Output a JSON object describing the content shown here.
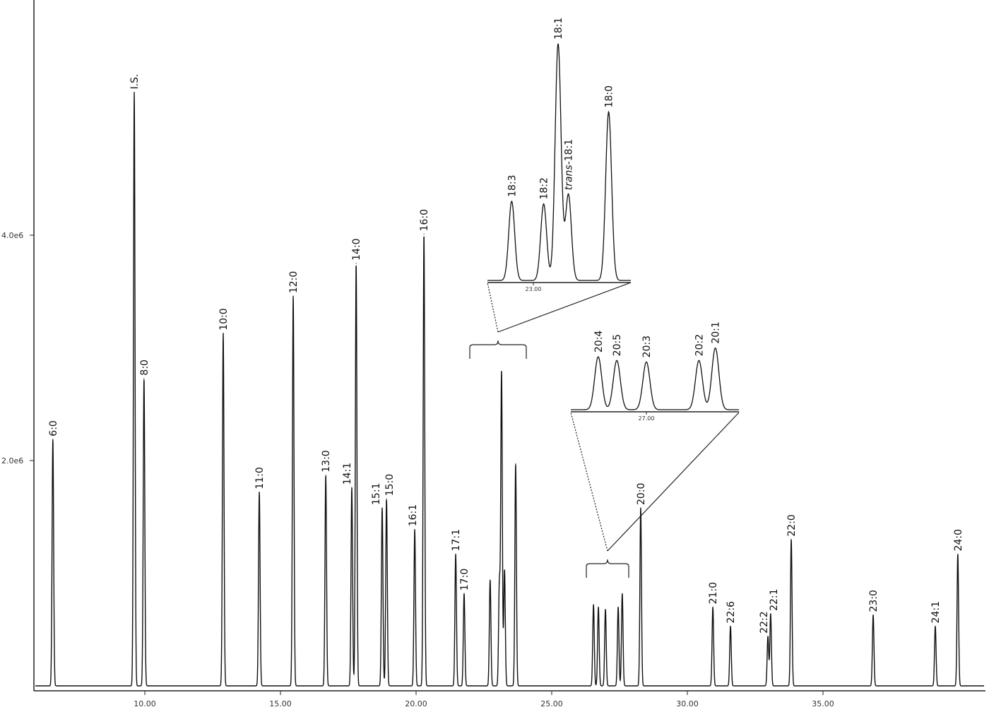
{
  "chart_data": {
    "type": "line",
    "title": "",
    "xlabel": "",
    "ylabel": "",
    "xlim": [
      5.6,
      40.9
    ],
    "ylim": [
      0,
      6080000.0
    ],
    "x_ticks": [
      10,
      15,
      20,
      25,
      30,
      35
    ],
    "x_tick_labels": [
      "10.00",
      "15.00",
      "20.00",
      "25.00",
      "30.00",
      "35.00"
    ],
    "y_ticks": [
      2000000,
      4000000
    ],
    "y_tick_labels": [
      "2.0e6",
      "4.0e6"
    ],
    "grid": false,
    "line_color": "#111111",
    "peaks": [
      {
        "label": "6:0",
        "t": 6.61,
        "height": 2190000
      },
      {
        "label": "I.S.",
        "t": 9.61,
        "height": 5270000
      },
      {
        "label": "8:0",
        "t": 9.97,
        "height": 2730000
      },
      {
        "label": "10:0",
        "t": 12.89,
        "height": 3130000
      },
      {
        "label": "11:0",
        "t": 14.22,
        "height": 1720000
      },
      {
        "label": "12:0",
        "t": 15.47,
        "height": 3460000
      },
      {
        "label": "13:0",
        "t": 16.67,
        "height": 1870000
      },
      {
        "label": "14:1",
        "t": 17.63,
        "height": 1760000
      },
      {
        "label": "14:0",
        "t": 17.79,
        "height": 3750000
      },
      {
        "label": "15:1",
        "t": 18.75,
        "height": 1580000
      },
      {
        "label": "15:0",
        "t": 18.91,
        "height": 1660000
      },
      {
        "label": "16:1",
        "t": 19.95,
        "height": 1390000
      },
      {
        "label": "16:0",
        "t": 20.29,
        "height": 4010000
      },
      {
        "label": "17:1",
        "t": 21.46,
        "height": 1170000
      },
      {
        "label": "17:0",
        "t": 21.77,
        "height": 820000
      },
      {
        "label": "",
        "t": 22.73,
        "height": 940000
      },
      {
        "label": "",
        "t": 23.07,
        "height": 910000
      },
      {
        "label": "",
        "t": 23.15,
        "height": 2780000
      },
      {
        "label": "",
        "t": 23.26,
        "height": 1030000
      },
      {
        "label": "",
        "t": 23.67,
        "height": 1970000
      },
      {
        "label": "",
        "t": 26.54,
        "height": 720000
      },
      {
        "label": "",
        "t": 26.72,
        "height": 700000
      },
      {
        "label": "",
        "t": 26.98,
        "height": 680000
      },
      {
        "label": "",
        "t": 27.45,
        "height": 700000
      },
      {
        "label": "",
        "t": 27.6,
        "height": 820000
      },
      {
        "label": "20:0",
        "t": 28.28,
        "height": 1580000
      },
      {
        "label": "21:0",
        "t": 30.94,
        "height": 700000
      },
      {
        "label": "22:6",
        "t": 31.59,
        "height": 530000
      },
      {
        "label": "22:2",
        "t": 32.97,
        "height": 440000
      },
      {
        "label": "22:1",
        "t": 33.07,
        "height": 640000
      },
      {
        "label": "22:0",
        "t": 33.83,
        "height": 1300000
      },
      {
        "label": "23:0",
        "t": 36.85,
        "height": 630000
      },
      {
        "label": "24:1",
        "t": 39.14,
        "height": 530000
      },
      {
        "label": "24:0",
        "t": 39.97,
        "height": 1170000
      }
    ],
    "insets": [
      {
        "tick_label": "23.00",
        "tick": 23.0,
        "peaks": [
          {
            "label": "18:3",
            "prefix": "",
            "t": 22.79,
            "height": 930000
          },
          {
            "label": "18:2",
            "prefix": "",
            "t": 23.1,
            "height": 900000
          },
          {
            "label": "18:1",
            "prefix": "",
            "t": 23.24,
            "height": 2780000
          },
          {
            "label": "-18:1",
            "prefix": "trans",
            "t": 23.34,
            "height": 1010000
          },
          {
            "label": "18:0",
            "prefix": "",
            "t": 23.73,
            "height": 1980000
          }
        ]
      },
      {
        "tick_label": "27.00",
        "tick": 27.0,
        "peaks": [
          {
            "label": "20:4",
            "prefix": "",
            "t": 26.56,
            "height": 720000
          },
          {
            "label": "20:5",
            "prefix": "",
            "t": 26.73,
            "height": 670000
          },
          {
            "label": "20:3",
            "prefix": "",
            "t": 27.0,
            "height": 650000
          },
          {
            "label": "20:2",
            "prefix": "",
            "t": 27.48,
            "height": 670000
          },
          {
            "label": "20:1",
            "prefix": "",
            "t": 27.63,
            "height": 840000
          }
        ]
      }
    ]
  }
}
